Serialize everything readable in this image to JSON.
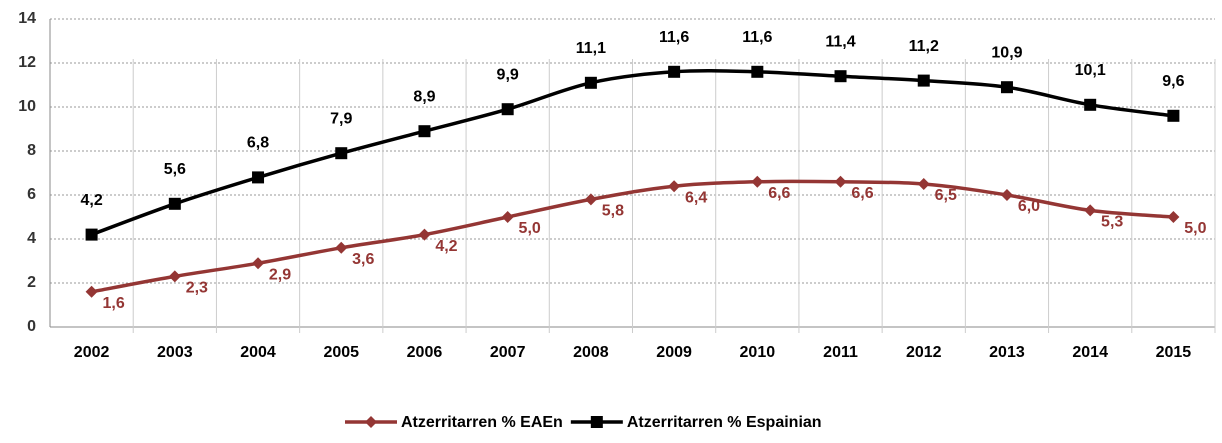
{
  "chart_data": {
    "type": "line",
    "categories": [
      "2002",
      "2003",
      "2004",
      "2005",
      "2006",
      "2007",
      "2008",
      "2009",
      "2010",
      "2011",
      "2012",
      "2013",
      "2014",
      "2015"
    ],
    "series": [
      {
        "name": "Atzerritarren % EAEn",
        "color": "#943634",
        "marker": "diamond",
        "values": [
          1.6,
          2.3,
          2.9,
          3.6,
          4.2,
          5.0,
          5.8,
          6.4,
          6.6,
          6.6,
          6.5,
          6.0,
          5.3,
          5.0
        ],
        "value_labels": [
          "1,6",
          "2,3",
          "2,9",
          "3,6",
          "4,2",
          "5,0",
          "5,8",
          "6,4",
          "6,6",
          "6,6",
          "6,5",
          "6,0",
          "5,3",
          "5,0"
        ]
      },
      {
        "name": "Atzerritarren % Espainian",
        "color": "#000000",
        "marker": "square",
        "values": [
          4.2,
          5.6,
          6.8,
          7.9,
          8.9,
          9.9,
          11.1,
          11.6,
          11.6,
          11.4,
          11.2,
          10.9,
          10.1,
          9.6
        ],
        "value_labels": [
          "4,2",
          "5,6",
          "6,8",
          "7,9",
          "8,9",
          "9,9",
          "11,1",
          "11,6",
          "11,6",
          "11,4",
          "11,2",
          "10,9",
          "10,1",
          "9,6"
        ]
      }
    ],
    "ylim": [
      0,
      14
    ],
    "yticks": [
      0,
      2,
      4,
      6,
      8,
      10,
      12,
      14
    ],
    "grid": true,
    "legend": "bottom"
  }
}
